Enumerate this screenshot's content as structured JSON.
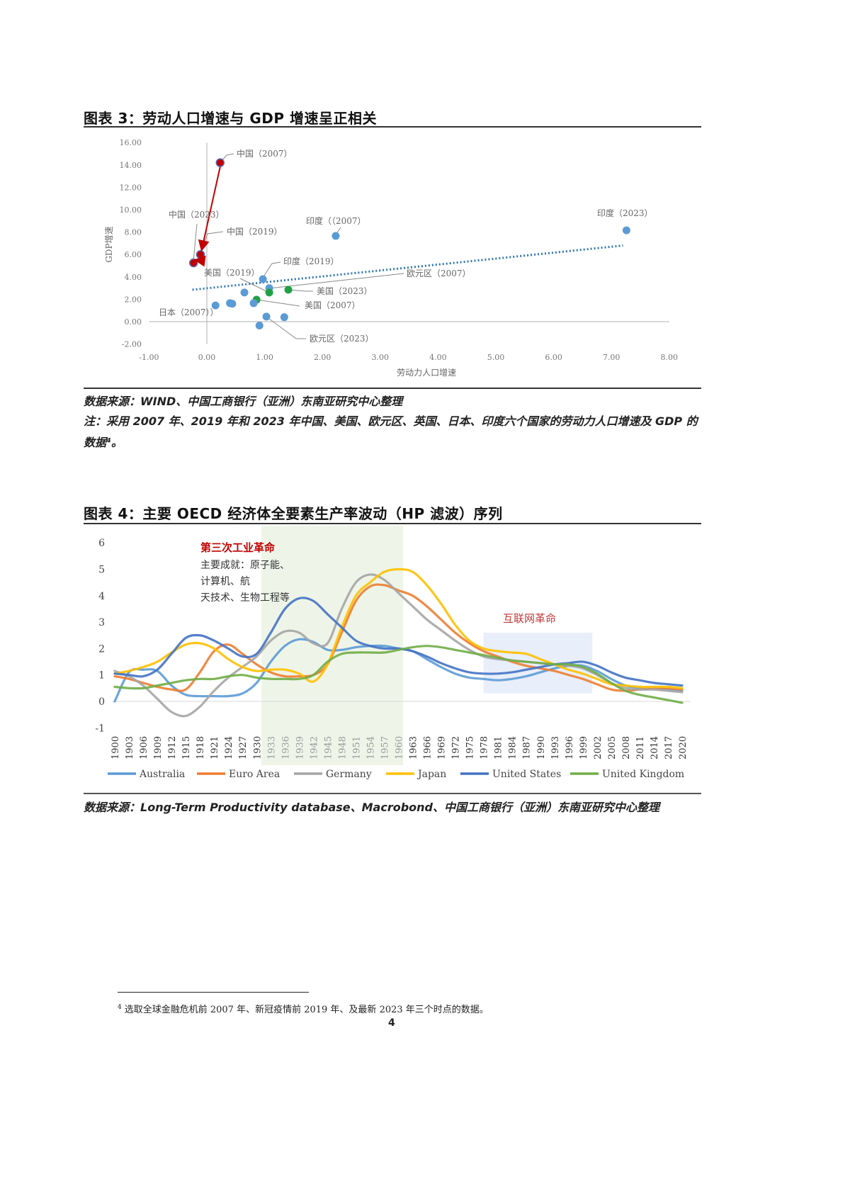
{
  "figure3": {
    "title": "图表 3：劳动人口增速与 GDP 增速呈正相关",
    "source": "数据来源：WIND、中国工商银行（亚洲）东南亚研究中心整理",
    "note": "注：采用 2007 年、2019 年和 2023 年中国、美国、欧元区、英国、日本、印度六个国家的劳动力人口增速及 GDP 的数据⁴。",
    "xlabel": "劳动力人口增速",
    "ylabel": "GDP增速"
  },
  "figure4": {
    "title": "图表 4：主要 OECD 经济体全要素生产率波动（HP 滤波）序列",
    "source": "数据来源：Long-Term Productivity database、Macrobond、中国工商银行（亚洲）东南亚研究中心整理",
    "annotation1_title": "第三次工业革命",
    "annotation1_lines": [
      "主要成就：原子能、",
      "计算机、航",
      "天技术、生物工程等"
    ],
    "annotation2": "互联网革命"
  },
  "footnote": {
    "mark": "4",
    "text": "选取全球金融危机前 2007 年、新冠疫情前 2019 年、及最新 2023 年三个时点的数据。"
  },
  "page_number": "4",
  "chart_data": [
    {
      "type": "scatter",
      "title": "劳动人口增速与 GDP 增速呈正相关",
      "xlabel": "劳动力人口增速",
      "ylabel": "GDP增速",
      "xlim": [
        -1,
        8
      ],
      "ylim": [
        -2,
        16
      ],
      "xticks": [
        "-1.00",
        "0.00",
        "1.00",
        "2.00",
        "3.00",
        "4.00",
        "5.00",
        "6.00",
        "7.00",
        "8.00"
      ],
      "yticks": [
        "-2.00",
        "0.00",
        "2.00",
        "4.00",
        "6.00",
        "8.00",
        "10.00",
        "12.00",
        "14.00",
        "16.00"
      ],
      "points": [
        {
          "label": "中国（2007）",
          "x": 0.23,
          "y": 14.2,
          "color": "#c00000",
          "show_label": true
        },
        {
          "label": "中国（2019）",
          "x": -0.11,
          "y": 6.0,
          "color": "#c00000",
          "show_label": true
        },
        {
          "label": "中国（2023）",
          "x": -0.23,
          "y": 5.25,
          "color": "#c00000",
          "show_label": true
        },
        {
          "label": "印度（（2007）",
          "x": 2.23,
          "y": 7.66,
          "color": "#5b9bd5",
          "show_label": true
        },
        {
          "label": "印度（2023）",
          "x": 7.26,
          "y": 8.16,
          "color": "#5b9bd5",
          "show_label": true
        },
        {
          "label": "印度（2019）",
          "x": 0.97,
          "y": 3.8,
          "color": "#5b9bd5",
          "show_label": true
        },
        {
          "label": "欧元区（2007）",
          "x": 1.08,
          "y": 3.0,
          "color": "#5b9bd5",
          "show_label": true
        },
        {
          "label": "美国（2019）",
          "x": 1.08,
          "y": 2.6,
          "color": "#21a047",
          "show_label": true
        },
        {
          "label": "美国（2023）",
          "x": 1.41,
          "y": 2.85,
          "color": "#21a047",
          "show_label": true
        },
        {
          "label": "美国（2007）",
          "x": 0.86,
          "y": 1.96,
          "color": "#21a047",
          "show_label": true
        },
        {
          "label": "",
          "x": 0.65,
          "y": 2.6,
          "color": "#5b9bd5",
          "show_label": false
        },
        {
          "label": "",
          "x": 0.81,
          "y": 1.65,
          "color": "#5b9bd5",
          "show_label": false
        },
        {
          "label": "",
          "x": 0.4,
          "y": 1.65,
          "color": "#5b9bd5",
          "show_label": false
        },
        {
          "label": "",
          "x": 0.44,
          "y": 1.6,
          "color": "#5b9bd5",
          "show_label": false
        },
        {
          "label": "日本（2007））",
          "x": 0.15,
          "y": 1.45,
          "color": "#5b9bd5",
          "show_label": true
        },
        {
          "label": "欧元区（2023）",
          "x": 1.03,
          "y": 0.45,
          "color": "#5b9bd5",
          "show_label": true
        },
        {
          "label": "",
          "x": 1.34,
          "y": 0.4,
          "color": "#5b9bd5",
          "show_label": false
        },
        {
          "label": "",
          "x": 0.91,
          "y": -0.35,
          "color": "#5b9bd5",
          "show_label": false
        }
      ],
      "trendline": {
        "style": "dotted",
        "color": "#2e75b6",
        "from": [
          -0.25,
          2.85
        ],
        "to": [
          7.2,
          6.8
        ]
      },
      "arrows": [
        {
          "from": [
            0.23,
            14.2
          ],
          "to": [
            -0.11,
            6.0
          ],
          "color": "#c00000"
        },
        {
          "from": [
            -0.05,
            5.8
          ],
          "to": [
            -0.2,
            5.0
          ],
          "color": "#c00000"
        }
      ],
      "grid": false
    },
    {
      "type": "line",
      "title": "主要 OECD 经济体全要素生产率波动（HP 滤波）序列",
      "xlabel": "",
      "ylabel": "",
      "ylim": [
        -1,
        6
      ],
      "yticks": [
        "6",
        "5",
        "4",
        "3",
        "2",
        "1",
        "0",
        "-1"
      ],
      "x": [
        1900,
        1903,
        1906,
        1909,
        1912,
        1915,
        1918,
        1921,
        1924,
        1927,
        1930,
        1933,
        1936,
        1939,
        1942,
        1945,
        1948,
        1951,
        1954,
        1957,
        1960,
        1963,
        1966,
        1969,
        1972,
        1975,
        1978,
        1981,
        1984,
        1987,
        1990,
        1993,
        1996,
        1999,
        2002,
        2005,
        2008,
        2011,
        2014,
        2017,
        2020
      ],
      "legend_position": "bottom",
      "shaded_regions": [
        {
          "label": "第三次工业革命",
          "x_from": 1931,
          "x_to": 1961,
          "color": "#e2efda"
        },
        {
          "label": "互联网革命",
          "x_from": 1978,
          "x_to": 2001,
          "y_from": 0.3,
          "y_to": 2.6,
          "color": "#dae3f3"
        }
      ],
      "series": [
        {
          "name": "Australia",
          "color": "#5b9bd5",
          "values": [
            0.0,
            1.1,
            1.2,
            1.15,
            0.6,
            0.25,
            0.2,
            0.2,
            0.2,
            0.3,
            0.7,
            1.5,
            2.1,
            2.35,
            2.25,
            1.95,
            1.95,
            2.05,
            2.1,
            2.1,
            2.0,
            1.9,
            1.6,
            1.3,
            1.05,
            0.9,
            0.85,
            0.8,
            0.85,
            0.95,
            1.1,
            1.25,
            1.35,
            1.35,
            1.15,
            0.85,
            0.6,
            0.5,
            0.5,
            0.45,
            0.4
          ]
        },
        {
          "name": "Euro Area",
          "color": "#ed7d31",
          "values": [
            0.95,
            0.85,
            0.7,
            0.55,
            0.45,
            0.45,
            1.1,
            1.9,
            2.15,
            1.8,
            1.4,
            1.1,
            0.95,
            0.95,
            1.0,
            1.4,
            2.6,
            3.8,
            4.35,
            4.4,
            4.2,
            4.0,
            3.6,
            3.1,
            2.6,
            2.2,
            1.9,
            1.7,
            1.5,
            1.35,
            1.25,
            1.15,
            1.0,
            0.85,
            0.65,
            0.45,
            0.4,
            0.45,
            0.5,
            0.5,
            0.45
          ]
        },
        {
          "name": "Germany",
          "color": "#a5a5a5",
          "values": [
            1.15,
            0.95,
            0.6,
            0.1,
            -0.4,
            -0.55,
            -0.2,
            0.4,
            0.9,
            1.3,
            1.7,
            2.3,
            2.65,
            2.6,
            2.2,
            2.2,
            3.5,
            4.5,
            4.8,
            4.6,
            4.1,
            3.6,
            3.1,
            2.7,
            2.3,
            1.95,
            1.7,
            1.6,
            1.55,
            1.5,
            1.45,
            1.4,
            1.35,
            1.25,
            1.0,
            0.7,
            0.5,
            0.45,
            0.45,
            0.4,
            0.35
          ]
        },
        {
          "name": "Japan",
          "color": "#ffc000",
          "values": [
            1.05,
            1.15,
            1.3,
            1.5,
            1.85,
            2.15,
            2.2,
            2.0,
            1.6,
            1.3,
            1.15,
            1.2,
            1.2,
            1.05,
            0.75,
            1.4,
            2.8,
            4.0,
            4.5,
            4.9,
            5.0,
            4.9,
            4.4,
            3.7,
            2.9,
            2.3,
            2.0,
            1.9,
            1.85,
            1.8,
            1.6,
            1.4,
            1.2,
            1.05,
            0.85,
            0.65,
            0.6,
            0.55,
            0.55,
            0.55,
            0.5
          ]
        },
        {
          "name": "United States",
          "color": "#4472c4",
          "values": [
            1.05,
            1.0,
            0.95,
            1.2,
            1.8,
            2.4,
            2.5,
            2.3,
            2.0,
            1.7,
            1.8,
            2.6,
            3.5,
            3.9,
            3.8,
            3.3,
            2.8,
            2.3,
            2.1,
            2.0,
            2.0,
            1.9,
            1.7,
            1.45,
            1.25,
            1.1,
            1.05,
            1.05,
            1.1,
            1.2,
            1.3,
            1.4,
            1.45,
            1.5,
            1.35,
            1.1,
            0.9,
            0.8,
            0.7,
            0.65,
            0.6
          ]
        },
        {
          "name": "United Kingdom",
          "color": "#70ad47",
          "values": [
            0.55,
            0.5,
            0.5,
            0.6,
            0.7,
            0.8,
            0.85,
            0.85,
            0.95,
            1.0,
            0.9,
            0.85,
            0.85,
            0.85,
            1.0,
            1.5,
            1.8,
            1.85,
            1.85,
            1.85,
            1.95,
            2.05,
            2.1,
            2.05,
            1.95,
            1.85,
            1.75,
            1.65,
            1.55,
            1.5,
            1.45,
            1.4,
            1.4,
            1.3,
            1.05,
            0.7,
            0.4,
            0.25,
            0.15,
            0.05,
            -0.05
          ]
        }
      ]
    }
  ]
}
